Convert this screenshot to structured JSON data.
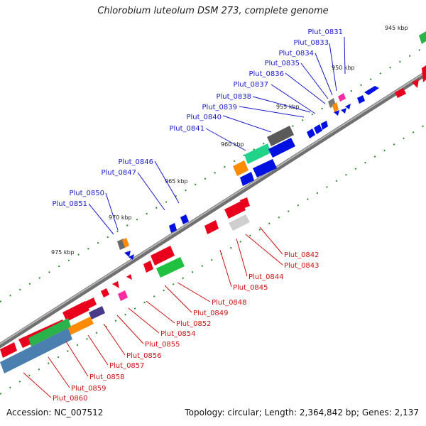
{
  "title": "Chlorobium luteolum DSM 273, complete genome",
  "footer": {
    "accession": "Accession: NC_007512",
    "summary": "Topology: circular; Length: 2,364,842 bp; Genes: 2,137"
  },
  "colors": {
    "forward_label": "#1a1acc",
    "reverse_label": "#cc1111",
    "backbone": "#8a8a8a",
    "tick": "#2a8a2a"
  },
  "ticks": [
    "945 kbp",
    "950 kbp",
    "955 kbp",
    "960 kbp",
    "965 kbp",
    "970 kbp",
    "975 kbp"
  ],
  "forward_labels": [
    "Plut_0831",
    "Plut_0833",
    "Plut_0834",
    "Plut_0835",
    "Plut_0836",
    "Plut_0837",
    "Plut_0838",
    "Plut_0839",
    "Plut_0840",
    "Plut_0841",
    "Plut_0846",
    "Plut_0847",
    "Plut_0850",
    "Plut_0851"
  ],
  "reverse_labels": [
    "Plut_0842",
    "Plut_0843",
    "Plut_0844",
    "Plut_0845",
    "Plut_0848",
    "Plut_0849",
    "Plut_0852",
    "Plut_0854",
    "Plut_0855",
    "Plut_0856",
    "Plut_0857",
    "Plut_0858",
    "Plut_0859",
    "Plut_0860"
  ]
}
